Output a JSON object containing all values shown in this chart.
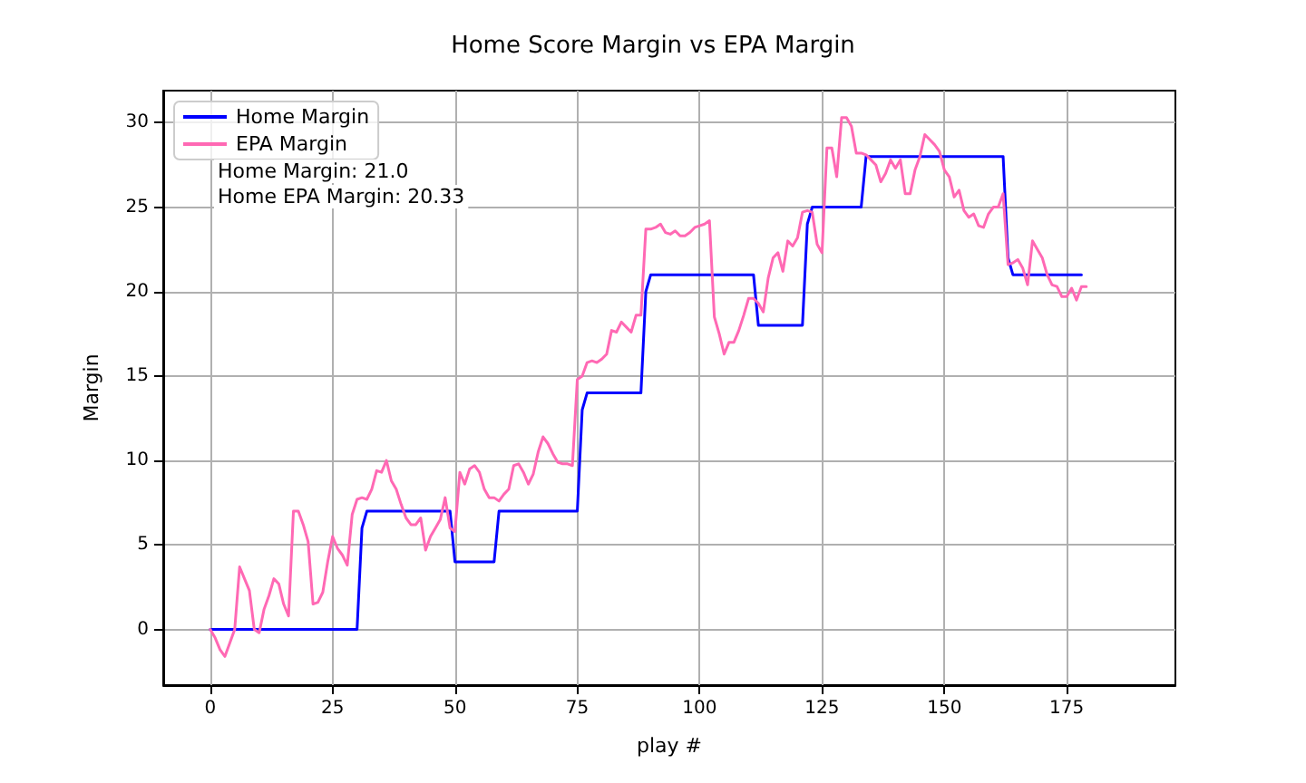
{
  "chart_data": {
    "type": "line",
    "title": "Home Score Margin vs EPA Margin",
    "xlabel": "play #",
    "ylabel": "Margin",
    "xlim": [
      -9.6,
      197.2
    ],
    "xticks": [
      0,
      25,
      50,
      75,
      100,
      125,
      150,
      175
    ],
    "ylim": [
      -3.3,
      31.9
    ],
    "yticks": [
      0,
      5,
      10,
      15,
      20,
      25,
      30
    ],
    "grid": true,
    "legend": "top left",
    "annotations": [
      "Home Margin: 21.0",
      "Home EPA Margin: 20.33"
    ],
    "series": [
      {
        "name": "Home Margin",
        "color": "#0000ff",
        "x": [
          0,
          30,
          31,
          32,
          49,
          50,
          58,
          59,
          75,
          76,
          77,
          88,
          89,
          90,
          111,
          112,
          121,
          122,
          123,
          133,
          134,
          162,
          163,
          164,
          178
        ],
        "values": [
          0,
          0,
          6,
          7,
          7,
          4,
          4,
          7,
          7,
          13,
          14,
          14,
          20,
          21,
          21,
          18,
          18,
          24,
          25,
          25,
          28,
          28,
          22,
          21,
          21
        ]
      },
      {
        "name": "EPA Margin",
        "color": "#ff69b4",
        "x": [
          0,
          1,
          2,
          3,
          4,
          5,
          6,
          7,
          8,
          9,
          10,
          11,
          12,
          13,
          14,
          15,
          16,
          17,
          18,
          19,
          20,
          21,
          22,
          23,
          24,
          25,
          26,
          27,
          28,
          29,
          30,
          31,
          32,
          33,
          34,
          35,
          36,
          37,
          38,
          39,
          40,
          41,
          42,
          43,
          44,
          45,
          46,
          47,
          48,
          49,
          50,
          51,
          52,
          53,
          54,
          55,
          56,
          57,
          58,
          59,
          60,
          61,
          62,
          63,
          64,
          65,
          66,
          67,
          68,
          69,
          70,
          71,
          72,
          73,
          74,
          75,
          76,
          77,
          78,
          79,
          80,
          81,
          82,
          83,
          84,
          85,
          86,
          87,
          88,
          89,
          90,
          91,
          92,
          93,
          94,
          95,
          96,
          97,
          98,
          99,
          100,
          101,
          102,
          103,
          104,
          105,
          106,
          107,
          108,
          109,
          110,
          111,
          112,
          113,
          114,
          115,
          116,
          117,
          118,
          119,
          120,
          121,
          122,
          123,
          124,
          125,
          126,
          127,
          128,
          129,
          130,
          131,
          132,
          133,
          134,
          135,
          136,
          137,
          138,
          139,
          140,
          141,
          142,
          143,
          144,
          145,
          146,
          147,
          148,
          149,
          150,
          151,
          152,
          153,
          154,
          155,
          156,
          157,
          158,
          159,
          160,
          161,
          162,
          163,
          164,
          165,
          166,
          167,
          168,
          169,
          170,
          171,
          172,
          173,
          174,
          175,
          176,
          177,
          178,
          179
        ],
        "values": [
          0,
          -0.5,
          -1.2,
          -1.6,
          -0.8,
          0,
          3.7,
          3,
          2.3,
          0,
          -0.2,
          1.2,
          2,
          3,
          2.7,
          1.5,
          0.8,
          7,
          7,
          6.2,
          5.2,
          1.5,
          1.6,
          2.2,
          4,
          5.5,
          4.8,
          4.4,
          3.8,
          6.8,
          7.7,
          7.8,
          7.7,
          8.3,
          9.4,
          9.3,
          10,
          8.8,
          8.3,
          7.4,
          6.6,
          6.2,
          6.2,
          6.6,
          4.7,
          5.5,
          6,
          6.5,
          7.8,
          6,
          5.8,
          9.3,
          8.6,
          9.5,
          9.7,
          9.3,
          8.3,
          7.8,
          7.8,
          7.6,
          8,
          8.3,
          9.7,
          9.8,
          9.3,
          8.6,
          9.2,
          10.5,
          11.4,
          11,
          10.4,
          9.9,
          9.8,
          9.8,
          9.7,
          14.8,
          15,
          15.8,
          15.9,
          15.8,
          16,
          16.3,
          17.7,
          17.6,
          18.2,
          17.9,
          17.6,
          18.6,
          18.6,
          23.7,
          23.7,
          23.8,
          24,
          23.5,
          23.4,
          23.6,
          23.3,
          23.3,
          23.5,
          23.8,
          23.9,
          24,
          24.2,
          18.5,
          17.5,
          16.3,
          17,
          17,
          17.7,
          18.6,
          19.6,
          19.6,
          19.3,
          18.8,
          20.8,
          22,
          22.3,
          21.2,
          23,
          22.7,
          23.2,
          24.7,
          24.8,
          24.7,
          22.8,
          22.3,
          28.5,
          28.5,
          26.8,
          30.3,
          30.3,
          29.8,
          28.2,
          28.2,
          28.1,
          27.8,
          27.5,
          26.5,
          27,
          27.8,
          27.3,
          27.8,
          25.8,
          25.8,
          27.2,
          28,
          29.3,
          29,
          28.7,
          28.3,
          27.2,
          26.8,
          25.6,
          26,
          24.8,
          24.4,
          24.6,
          23.9,
          23.8,
          24.6,
          25,
          25,
          25.8,
          21.6,
          21.7,
          21.9,
          21.4,
          20.4,
          23,
          22.5,
          22,
          21,
          20.4,
          20.3,
          19.7,
          19.7,
          20.2,
          19.5,
          20.3,
          20.3
        ]
      }
    ]
  }
}
